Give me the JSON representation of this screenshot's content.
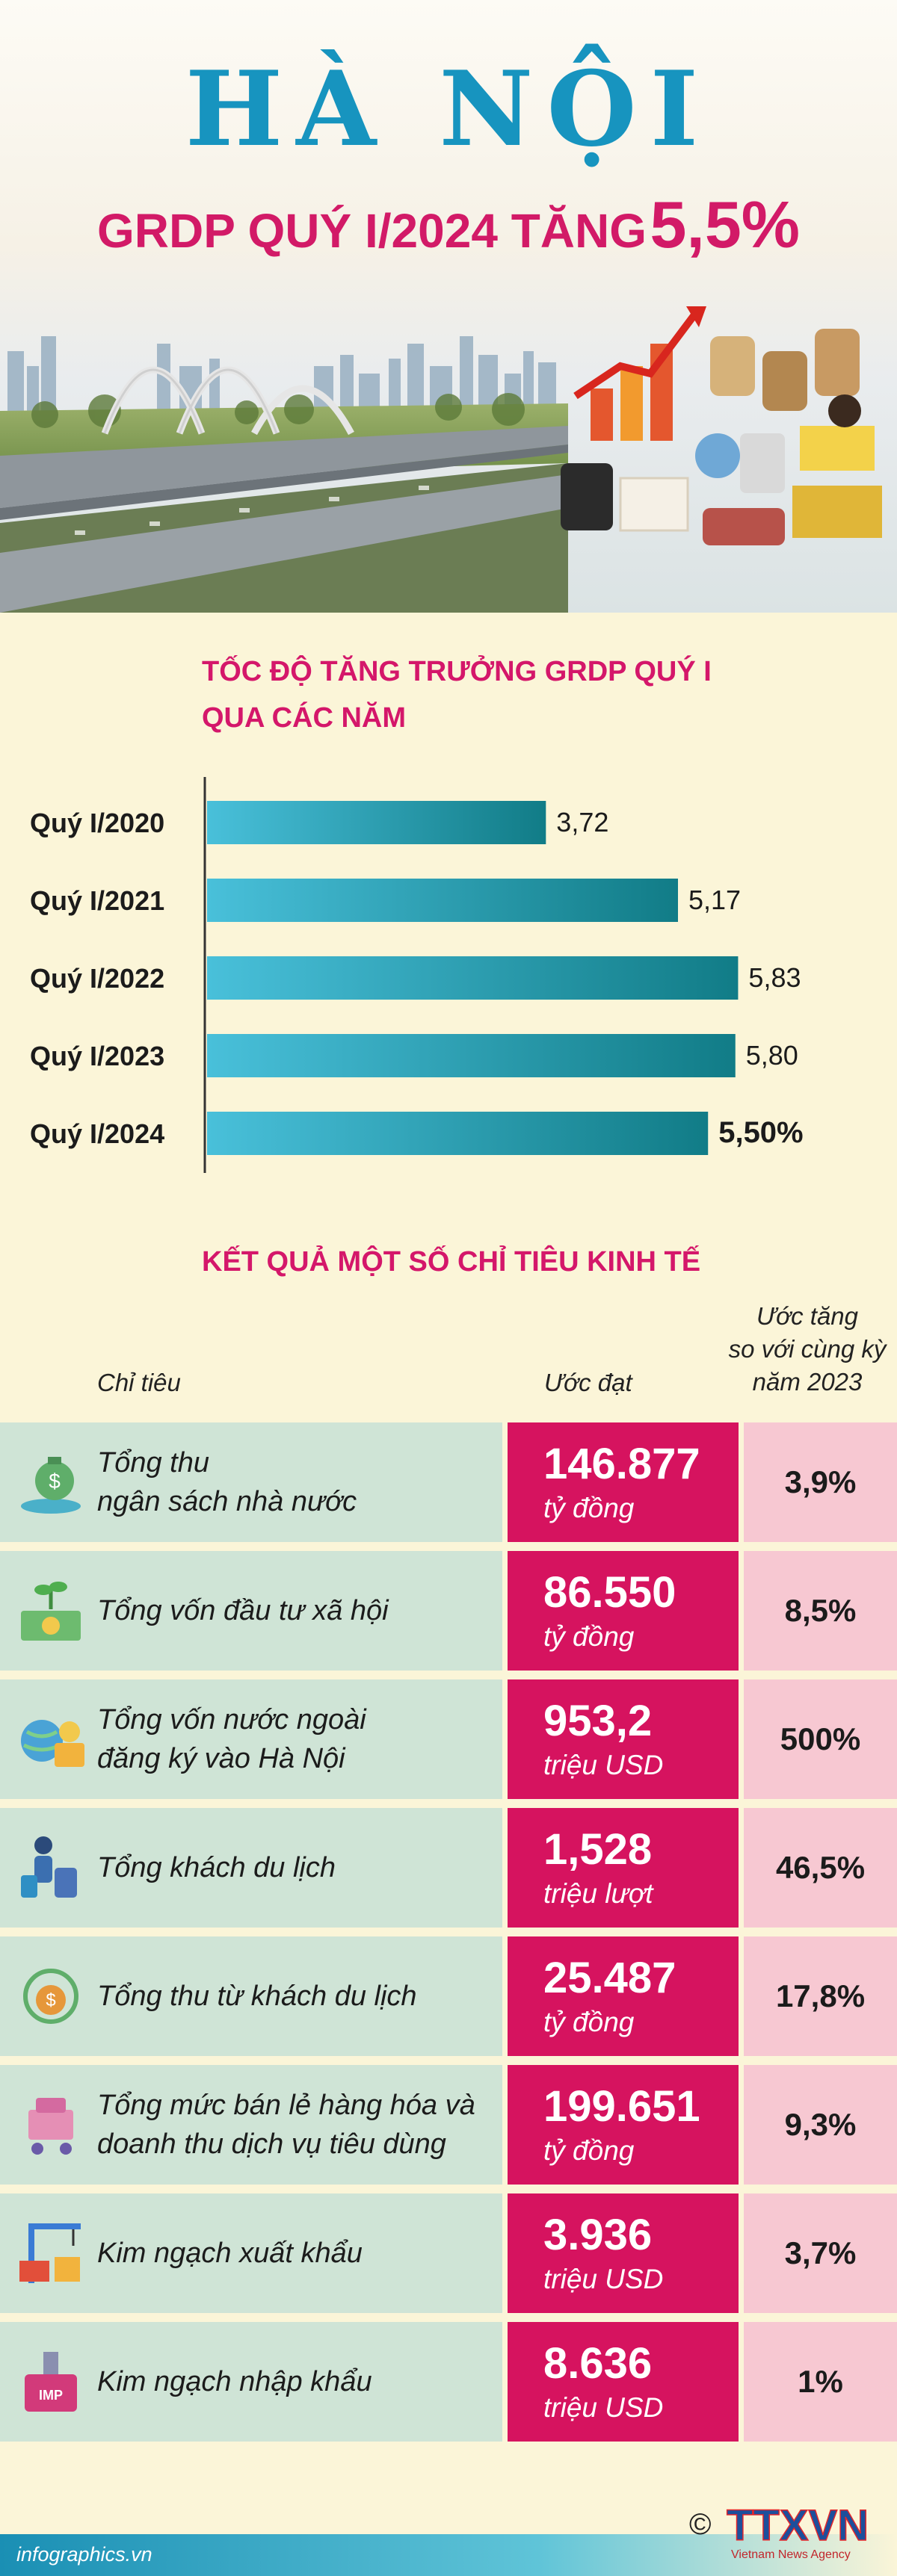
{
  "header": {
    "title": "HÀ NỘI",
    "subtitle_prefix": "GRDP QUÝ I/2024 TĂNG",
    "subtitle_value": "5,5%"
  },
  "chart_data": {
    "type": "bar",
    "orientation": "horizontal",
    "title_line1": "TỐC ĐỘ TĂNG TRƯỞNG GRDP QUÝ I",
    "title_line2": "QUA CÁC NĂM",
    "categories": [
      "Quý I/2020",
      "Quý I/2021",
      "Quý I/2022",
      "Quý I/2023",
      "Quý I/2024"
    ],
    "values": [
      3.72,
      5.17,
      5.83,
      5.8,
      5.5
    ],
    "value_labels": [
      "3,72",
      "5,17",
      "5,83",
      "5,80",
      "5,50%"
    ],
    "highlight_index": 4,
    "xlim": [
      0,
      7
    ],
    "grid": false,
    "colors": {
      "bar_start": "#49c0da",
      "bar_end": "#117c87"
    }
  },
  "table": {
    "title": "KẾT QUẢ MỘT SỐ CHỈ TIÊU KINH TẾ",
    "col_name": "Chỉ tiêu",
    "col_estimate": "Ước đạt",
    "col_growth_1": "Ước tăng",
    "col_growth_2": "so với cùng kỳ",
    "col_growth_3": "năm 2023",
    "rows": [
      {
        "label_1": "Tổng thu",
        "label_2": "ngân sách nhà nước",
        "value": "146.877",
        "unit": "tỷ đồng",
        "growth": "3,9%",
        "icon": "money-bag-hand-icon"
      },
      {
        "label_1": "Tổng vốn đầu tư xã hội",
        "label_2": "",
        "value": "86.550",
        "unit": "tỷ đồng",
        "growth": "8,5%",
        "icon": "cash-plant-icon"
      },
      {
        "label_1": "Tổng vốn nước ngoài",
        "label_2": "đăng ký vào Hà Nội",
        "value": "953,2",
        "unit": "triệu USD",
        "growth": "500%",
        "icon": "globe-money-icon"
      },
      {
        "label_1": "Tổng khách du lịch",
        "label_2": "",
        "value": "1,528",
        "unit": "triệu lượt",
        "growth": "46,5%",
        "icon": "traveler-luggage-icon"
      },
      {
        "label_1": "Tổng thu từ khách du lịch",
        "label_2": "",
        "value": "25.487",
        "unit": "tỷ đồng",
        "growth": "17,8%",
        "icon": "tourism-revenue-icon"
      },
      {
        "label_1": "Tổng mức bán lẻ hàng hóa và",
        "label_2": "doanh thu dịch vụ tiêu dùng",
        "value": "199.651",
        "unit": "tỷ đồng",
        "growth": "9,3%",
        "icon": "shopping-cart-icon"
      },
      {
        "label_1": "Kim ngạch xuất khẩu",
        "label_2": "",
        "value": "3.936",
        "unit": "triệu USD",
        "growth": "3,7%",
        "icon": "export-crane-icon"
      },
      {
        "label_1": "Kim ngạch nhập khẩu",
        "label_2": "",
        "value": "8.636",
        "unit": "triệu USD",
        "growth": "1%",
        "icon": "import-box-icon"
      }
    ]
  },
  "footer": {
    "source": "infographics.vn",
    "logo_text": "TTXVN",
    "logo_sub": "Vietnam News Agency",
    "copyright": "©"
  },
  "colors": {
    "title_blue": "#1794bf",
    "accent_pink": "#d21a67",
    "background": "#fbf5d8"
  }
}
